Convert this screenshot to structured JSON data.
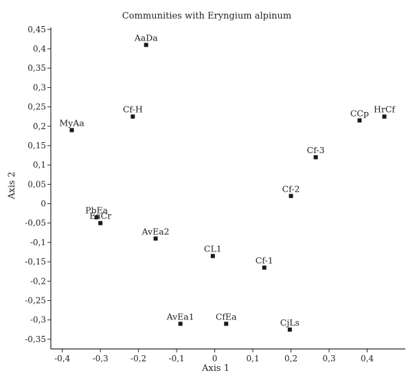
{
  "chart_data": {
    "type": "scatter",
    "title": "Communities with Eryngium alpinum",
    "xlabel": "Axis 1",
    "ylabel": "Axis 2",
    "xlim": [
      -0.43,
      0.5
    ],
    "ylim": [
      -0.375,
      0.455
    ],
    "xticks": [
      -0.4,
      -0.3,
      -0.2,
      -0.1,
      0,
      0.1,
      0.2,
      0.3,
      0.4
    ],
    "xtick_labels": [
      "-0,4",
      "-0,3",
      "-0,2",
      "-0,1",
      "0",
      "0,1",
      "0,2",
      "0,3",
      "0,4"
    ],
    "yticks": [
      0.45,
      0.4,
      0.35,
      0.3,
      0.25,
      0.2,
      0.15,
      0.1,
      0.05,
      0,
      -0.05,
      -0.1,
      -0.15,
      -0.2,
      -0.25,
      -0.3,
      -0.35
    ],
    "ytick_labels": [
      "0,45",
      "0,4",
      "0,35",
      "0,3",
      "0,25",
      "0,2",
      "0,15",
      "0,1",
      "0,05",
      "0",
      "-0,05",
      "-0,1",
      "-0,15",
      "-0,2",
      "-0,25",
      "-0,3",
      "-0,35"
    ],
    "grid": false,
    "points": [
      {
        "label": "AaDa",
        "x": -0.18,
        "y": 0.41
      },
      {
        "label": "Cf-H",
        "x": -0.215,
        "y": 0.225
      },
      {
        "label": "MyAa",
        "x": -0.375,
        "y": 0.19
      },
      {
        "label": "CCp",
        "x": 0.38,
        "y": 0.215
      },
      {
        "label": "HrCf",
        "x": 0.445,
        "y": 0.225
      },
      {
        "label": "Cf-3",
        "x": 0.265,
        "y": 0.12
      },
      {
        "label": "Cf-2",
        "x": 0.2,
        "y": 0.02
      },
      {
        "label": "PbEa",
        "x": -0.31,
        "y": -0.035
      },
      {
        "label": "EaCr",
        "x": -0.3,
        "y": -0.05
      },
      {
        "label": "AvEa2",
        "x": -0.155,
        "y": -0.09
      },
      {
        "label": "CL1",
        "x": -0.005,
        "y": -0.135
      },
      {
        "label": "Cf-1",
        "x": 0.13,
        "y": -0.165
      },
      {
        "label": "AvEa1",
        "x": -0.09,
        "y": -0.31
      },
      {
        "label": "CfEa",
        "x": 0.03,
        "y": -0.31
      },
      {
        "label": "CjLs",
        "x": 0.197,
        "y": -0.325
      }
    ]
  }
}
